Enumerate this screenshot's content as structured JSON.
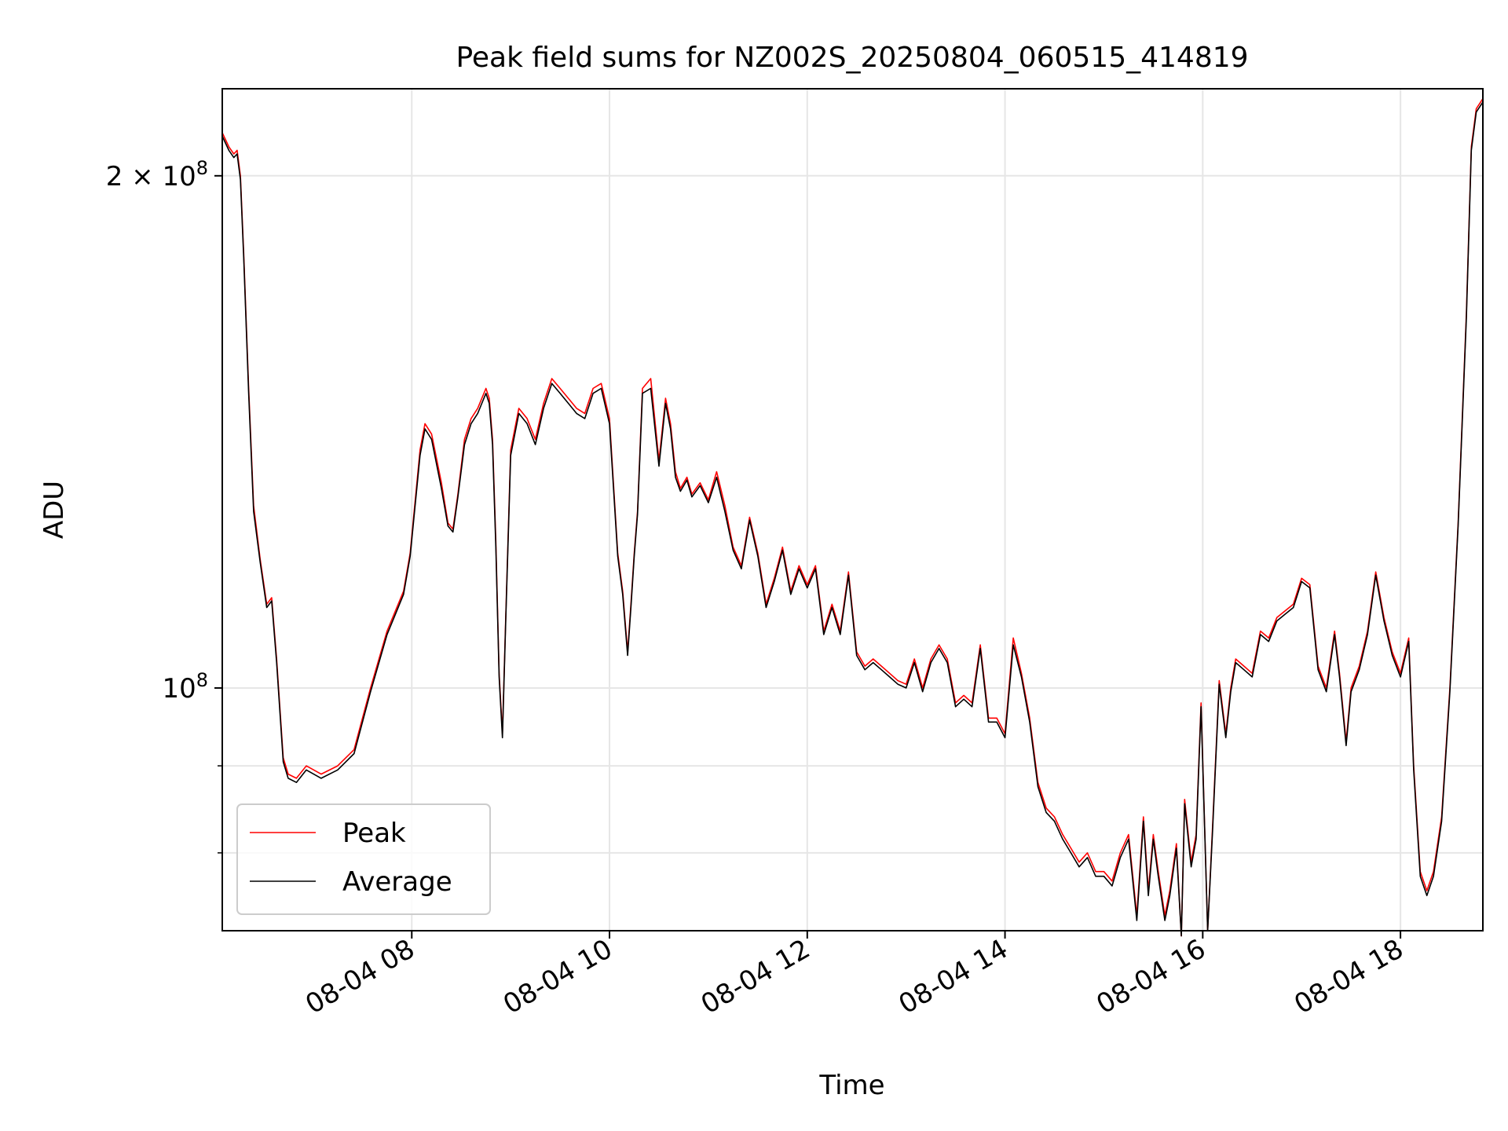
{
  "chart_data": {
    "type": "line",
    "title": "Peak field sums for NZ002S_20250804_060515_414819",
    "xlabel": "Time",
    "ylabel": "ADU",
    "yscale": "log",
    "grid": true,
    "legend_position": "lower-left",
    "xlim": [
      "2025-08-04 06:05",
      "2025-08-04 18:50"
    ],
    "ylim": [
      72000000,
      225000000
    ],
    "x_ticks": [
      "08-04 08",
      "08-04 10",
      "08-04 12",
      "08-04 14",
      "08-04 16",
      "08-04 18"
    ],
    "x_tick_values": [
      "2025-08-04 08:00",
      "2025-08-04 10:00",
      "2025-08-04 12:00",
      "2025-08-04 14:00",
      "2025-08-04 16:00",
      "2025-08-04 18:00"
    ],
    "y_ticks": [
      {
        "value": 100000000,
        "mantissa": "",
        "exponent": "8"
      },
      {
        "value": 200000000,
        "mantissa": "2 × ",
        "exponent": "8"
      }
    ],
    "y_minor_ticks": [
      80000000,
      90000000
    ],
    "x": [
      "2025-08-04 06:05",
      "2025-08-04 06:09",
      "2025-08-04 06:12",
      "2025-08-04 06:14",
      "2025-08-04 06:16",
      "2025-08-04 06:18",
      "2025-08-04 06:21",
      "2025-08-04 06:24",
      "2025-08-04 06:28",
      "2025-08-04 06:32",
      "2025-08-04 06:35",
      "2025-08-04 06:38",
      "2025-08-04 06:42",
      "2025-08-04 06:45",
      "2025-08-04 06:50",
      "2025-08-04 06:56",
      "2025-08-04 07:05",
      "2025-08-04 07:15",
      "2025-08-04 07:25",
      "2025-08-04 07:35",
      "2025-08-04 07:45",
      "2025-08-04 07:55",
      "2025-08-04 07:59",
      "2025-08-04 08:05",
      "2025-08-04 08:08",
      "2025-08-04 08:12",
      "2025-08-04 08:18",
      "2025-08-04 08:22",
      "2025-08-04 08:25",
      "2025-08-04 08:28",
      "2025-08-04 08:32",
      "2025-08-04 08:36",
      "2025-08-04 08:40",
      "2025-08-04 08:45",
      "2025-08-04 08:47",
      "2025-08-04 08:49",
      "2025-08-04 08:51",
      "2025-08-04 08:53",
      "2025-08-04 08:55",
      "2025-08-04 08:57",
      "2025-08-04 09:00",
      "2025-08-04 09:05",
      "2025-08-04 09:10",
      "2025-08-04 09:15",
      "2025-08-04 09:20",
      "2025-08-04 09:25",
      "2025-08-04 09:30",
      "2025-08-04 09:35",
      "2025-08-04 09:40",
      "2025-08-04 09:45",
      "2025-08-04 09:50",
      "2025-08-04 09:55",
      "2025-08-04 10:00",
      "2025-08-04 10:05",
      "2025-08-04 10:08",
      "2025-08-04 10:11",
      "2025-08-04 10:13",
      "2025-08-04 10:15",
      "2025-08-04 10:17",
      "2025-08-04 10:20",
      "2025-08-04 10:25",
      "2025-08-04 10:30",
      "2025-08-04 10:34",
      "2025-08-04 10:37",
      "2025-08-04 10:40",
      "2025-08-04 10:43",
      "2025-08-04 10:47",
      "2025-08-04 10:50",
      "2025-08-04 10:55",
      "2025-08-04 11:00",
      "2025-08-04 11:05",
      "2025-08-04 11:10",
      "2025-08-04 11:15",
      "2025-08-04 11:20",
      "2025-08-04 11:25",
      "2025-08-04 11:30",
      "2025-08-04 11:35",
      "2025-08-04 11:40",
      "2025-08-04 11:45",
      "2025-08-04 11:50",
      "2025-08-04 11:55",
      "2025-08-04 12:00",
      "2025-08-04 12:05",
      "2025-08-04 12:10",
      "2025-08-04 12:15",
      "2025-08-04 12:20",
      "2025-08-04 12:25",
      "2025-08-04 12:30",
      "2025-08-04 12:35",
      "2025-08-04 12:40",
      "2025-08-04 12:45",
      "2025-08-04 12:50",
      "2025-08-04 12:55",
      "2025-08-04 13:00",
      "2025-08-04 13:05",
      "2025-08-04 13:10",
      "2025-08-04 13:15",
      "2025-08-04 13:20",
      "2025-08-04 13:25",
      "2025-08-04 13:30",
      "2025-08-04 13:35",
      "2025-08-04 13:40",
      "2025-08-04 13:45",
      "2025-08-04 13:50",
      "2025-08-04 13:55",
      "2025-08-04 14:00",
      "2025-08-04 14:05",
      "2025-08-04 14:10",
      "2025-08-04 14:15",
      "2025-08-04 14:20",
      "2025-08-04 14:25",
      "2025-08-04 14:30",
      "2025-08-04 14:35",
      "2025-08-04 14:40",
      "2025-08-04 14:45",
      "2025-08-04 14:50",
      "2025-08-04 14:55",
      "2025-08-04 15:00",
      "2025-08-04 15:05",
      "2025-08-04 15:10",
      "2025-08-04 15:15",
      "2025-08-04 15:20",
      "2025-08-04 15:24",
      "2025-08-04 15:27",
      "2025-08-04 15:30",
      "2025-08-04 15:33",
      "2025-08-04 15:37",
      "2025-08-04 15:40",
      "2025-08-04 15:44",
      "2025-08-04 15:47",
      "2025-08-04 15:49",
      "2025-08-04 15:53",
      "2025-08-04 15:56",
      "2025-08-04 15:59",
      "2025-08-04 16:03",
      "2025-08-04 16:06",
      "2025-08-04 16:10",
      "2025-08-04 16:14",
      "2025-08-04 16:17",
      "2025-08-04 16:20",
      "2025-08-04 16:25",
      "2025-08-04 16:30",
      "2025-08-04 16:35",
      "2025-08-04 16:40",
      "2025-08-04 16:45",
      "2025-08-04 16:50",
      "2025-08-04 16:55",
      "2025-08-04 17:00",
      "2025-08-04 17:05",
      "2025-08-04 17:10",
      "2025-08-04 17:15",
      "2025-08-04 17:20",
      "2025-08-04 17:23",
      "2025-08-04 17:27",
      "2025-08-04 17:30",
      "2025-08-04 17:35",
      "2025-08-04 17:40",
      "2025-08-04 17:45",
      "2025-08-04 17:50",
      "2025-08-04 17:55",
      "2025-08-04 18:00",
      "2025-08-04 18:05",
      "2025-08-04 18:08",
      "2025-08-04 18:12",
      "2025-08-04 18:16",
      "2025-08-04 18:20",
      "2025-08-04 18:25",
      "2025-08-04 18:30",
      "2025-08-04 18:35",
      "2025-08-04 18:40",
      "2025-08-04 18:43",
      "2025-08-04 18:46",
      "2025-08-04 18:50"
    ],
    "series": [
      {
        "name": "Peak",
        "color": "#ff0000",
        "values": [
          212000000,
          208000000,
          206000000,
          207000000,
          200000000,
          180000000,
          150000000,
          128000000,
          119000000,
          112000000,
          113000000,
          104000000,
          91000000,
          89000000,
          88500000,
          90000000,
          89000000,
          90000000,
          92000000,
          100000000,
          108000000,
          114000000,
          120000000,
          138000000,
          143000000,
          141000000,
          132000000,
          125000000,
          124000000,
          130000000,
          140000000,
          144000000,
          146000000,
          150000000,
          148000000,
          140000000,
          122000000,
          102000000,
          94000000,
          110000000,
          138000000,
          146000000,
          144000000,
          140000000,
          147000000,
          152000000,
          150000000,
          148000000,
          146000000,
          145000000,
          150000000,
          151000000,
          144000000,
          120000000,
          114000000,
          105000000,
          112000000,
          120000000,
          127000000,
          150000000,
          152000000,
          136000000,
          148000000,
          143000000,
          134000000,
          131000000,
          133000000,
          130000000,
          132000000,
          129000000,
          134000000,
          128000000,
          121000000,
          118000000,
          126000000,
          120000000,
          112000000,
          116000000,
          121000000,
          114000000,
          118000000,
          115000000,
          118000000,
          108000000,
          112000000,
          108000000,
          117000000,
          105000000,
          103000000,
          104000000,
          103000000,
          102000000,
          101000000,
          100500000,
          104000000,
          100000000,
          104000000,
          106000000,
          104000000,
          98000000,
          99000000,
          98000000,
          106000000,
          96000000,
          96000000,
          94000000,
          107000000,
          102000000,
          96000000,
          88000000,
          85000000,
          84000000,
          82000000,
          80500000,
          79000000,
          80000000,
          78000000,
          78000000,
          77000000,
          80000000,
          82000000,
          73500000,
          84000000,
          76000000,
          82000000,
          78000000,
          73500000,
          76000000,
          81000000,
          71500000,
          86000000,
          79000000,
          82000000,
          98000000,
          72000000,
          83000000,
          101000000,
          94000000,
          100000000,
          104000000,
          103000000,
          102000000,
          108000000,
          107000000,
          110000000,
          111000000,
          112000000,
          116000000,
          115000000,
          103000000,
          100000000,
          108000000,
          102000000,
          93000000,
          100000000,
          103000000,
          108000000,
          117000000,
          110000000,
          105000000,
          102000000,
          107000000,
          90000000,
          78000000,
          76000000,
          78000000,
          84000000,
          100000000,
          125000000,
          166000000,
          208000000,
          219000000,
          222000000
        ]
      },
      {
        "name": "Average",
        "color": "#000000",
        "values": [
          211000000,
          207000000,
          205000000,
          206000000,
          199000000,
          179000000,
          149000000,
          127000000,
          118500000,
          111500000,
          112500000,
          103500000,
          90500000,
          88500000,
          88000000,
          89500000,
          88500000,
          89500000,
          91500000,
          99500000,
          107500000,
          113500000,
          119500000,
          137000000,
          142000000,
          140000000,
          131000000,
          124500000,
          123500000,
          129500000,
          139000000,
          143000000,
          145000000,
          149000000,
          147000000,
          139000000,
          121000000,
          101500000,
          93500000,
          109500000,
          137000000,
          145000000,
          143000000,
          139000000,
          146000000,
          151000000,
          149000000,
          147000000,
          145000000,
          144000000,
          149000000,
          150000000,
          143000000,
          119500000,
          113500000,
          104500000,
          111500000,
          119500000,
          126500000,
          149000000,
          150000000,
          135000000,
          147000000,
          142000000,
          133000000,
          130500000,
          132500000,
          129500000,
          131500000,
          128500000,
          133000000,
          127000000,
          120500000,
          117500000,
          125500000,
          119500000,
          111500000,
          115500000,
          120500000,
          113500000,
          117500000,
          114500000,
          117500000,
          107500000,
          111500000,
          107500000,
          116500000,
          104500000,
          102500000,
          103500000,
          102500000,
          101500000,
          100500000,
          100000000,
          103500000,
          99500000,
          103500000,
          105500000,
          103500000,
          97500000,
          98500000,
          97500000,
          105500000,
          95500000,
          95500000,
          93500000,
          106000000,
          101500000,
          95500000,
          87500000,
          84500000,
          83500000,
          81500000,
          80000000,
          78500000,
          79500000,
          77500000,
          77500000,
          76500000,
          79500000,
          81500000,
          73000000,
          83500000,
          75500000,
          81500000,
          77500000,
          73000000,
          75500000,
          80500000,
          71500000,
          85500000,
          78500000,
          81500000,
          97500000,
          72000000,
          82500000,
          100500000,
          93500000,
          99500000,
          103500000,
          102500000,
          101500000,
          107500000,
          106500000,
          109500000,
          110500000,
          111500000,
          115500000,
          114500000,
          102500000,
          99500000,
          107500000,
          101500000,
          92500000,
          99500000,
          102500000,
          107500000,
          116500000,
          109500000,
          104500000,
          101500000,
          106500000,
          89500000,
          77500000,
          75500000,
          77500000,
          83500000,
          99500000,
          124500000,
          165000000,
          207000000,
          218000000,
          221000000
        ]
      }
    ]
  }
}
